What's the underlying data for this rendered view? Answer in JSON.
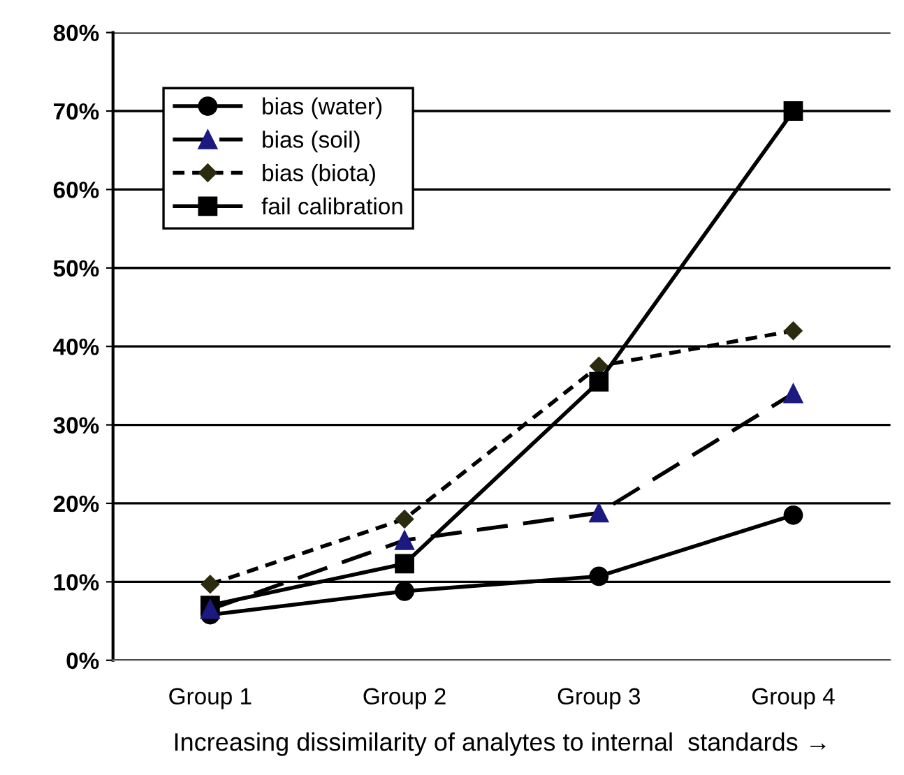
{
  "chart_data": {
    "type": "line",
    "xlabel": "Increasing dissimilarity of analytes to internal  standards →",
    "categories": [
      "Group 1",
      "Group 2",
      "Group 3",
      "Group 4"
    ],
    "series": [
      {
        "name": "bias (water)",
        "color": "#000000",
        "marker": "circle",
        "line_style": "solid",
        "values": [
          5.8,
          8.8,
          10.7,
          18.5
        ]
      },
      {
        "name": "bias (soil)",
        "color": "#1a1a80",
        "marker": "triangle",
        "line_style": "dashed",
        "values": [
          6.5,
          15.3,
          18.8,
          34
        ]
      },
      {
        "name": "bias (biota)",
        "color": "#2b2b10",
        "marker": "diamond",
        "line_style": "dotted",
        "values": [
          9.7,
          18,
          37.5,
          42
        ]
      },
      {
        "name": "fail calibration",
        "color": "#000000",
        "marker": "square",
        "line_style": "solid",
        "values": [
          7,
          12.3,
          35.5,
          70
        ]
      }
    ],
    "ylim": [
      0,
      80
    ],
    "yticks": [
      {
        "value": 0,
        "label": "0%"
      },
      {
        "value": 10,
        "label": "10%"
      },
      {
        "value": 20,
        "label": "20%"
      },
      {
        "value": 30,
        "label": "30%"
      },
      {
        "value": 40,
        "label": "40%"
      },
      {
        "value": 50,
        "label": "50%"
      },
      {
        "value": 60,
        "label": "60%"
      },
      {
        "value": 70,
        "label": "70%"
      },
      {
        "value": 80,
        "label": "80%"
      }
    ],
    "grid": "y",
    "legend": "top left"
  }
}
